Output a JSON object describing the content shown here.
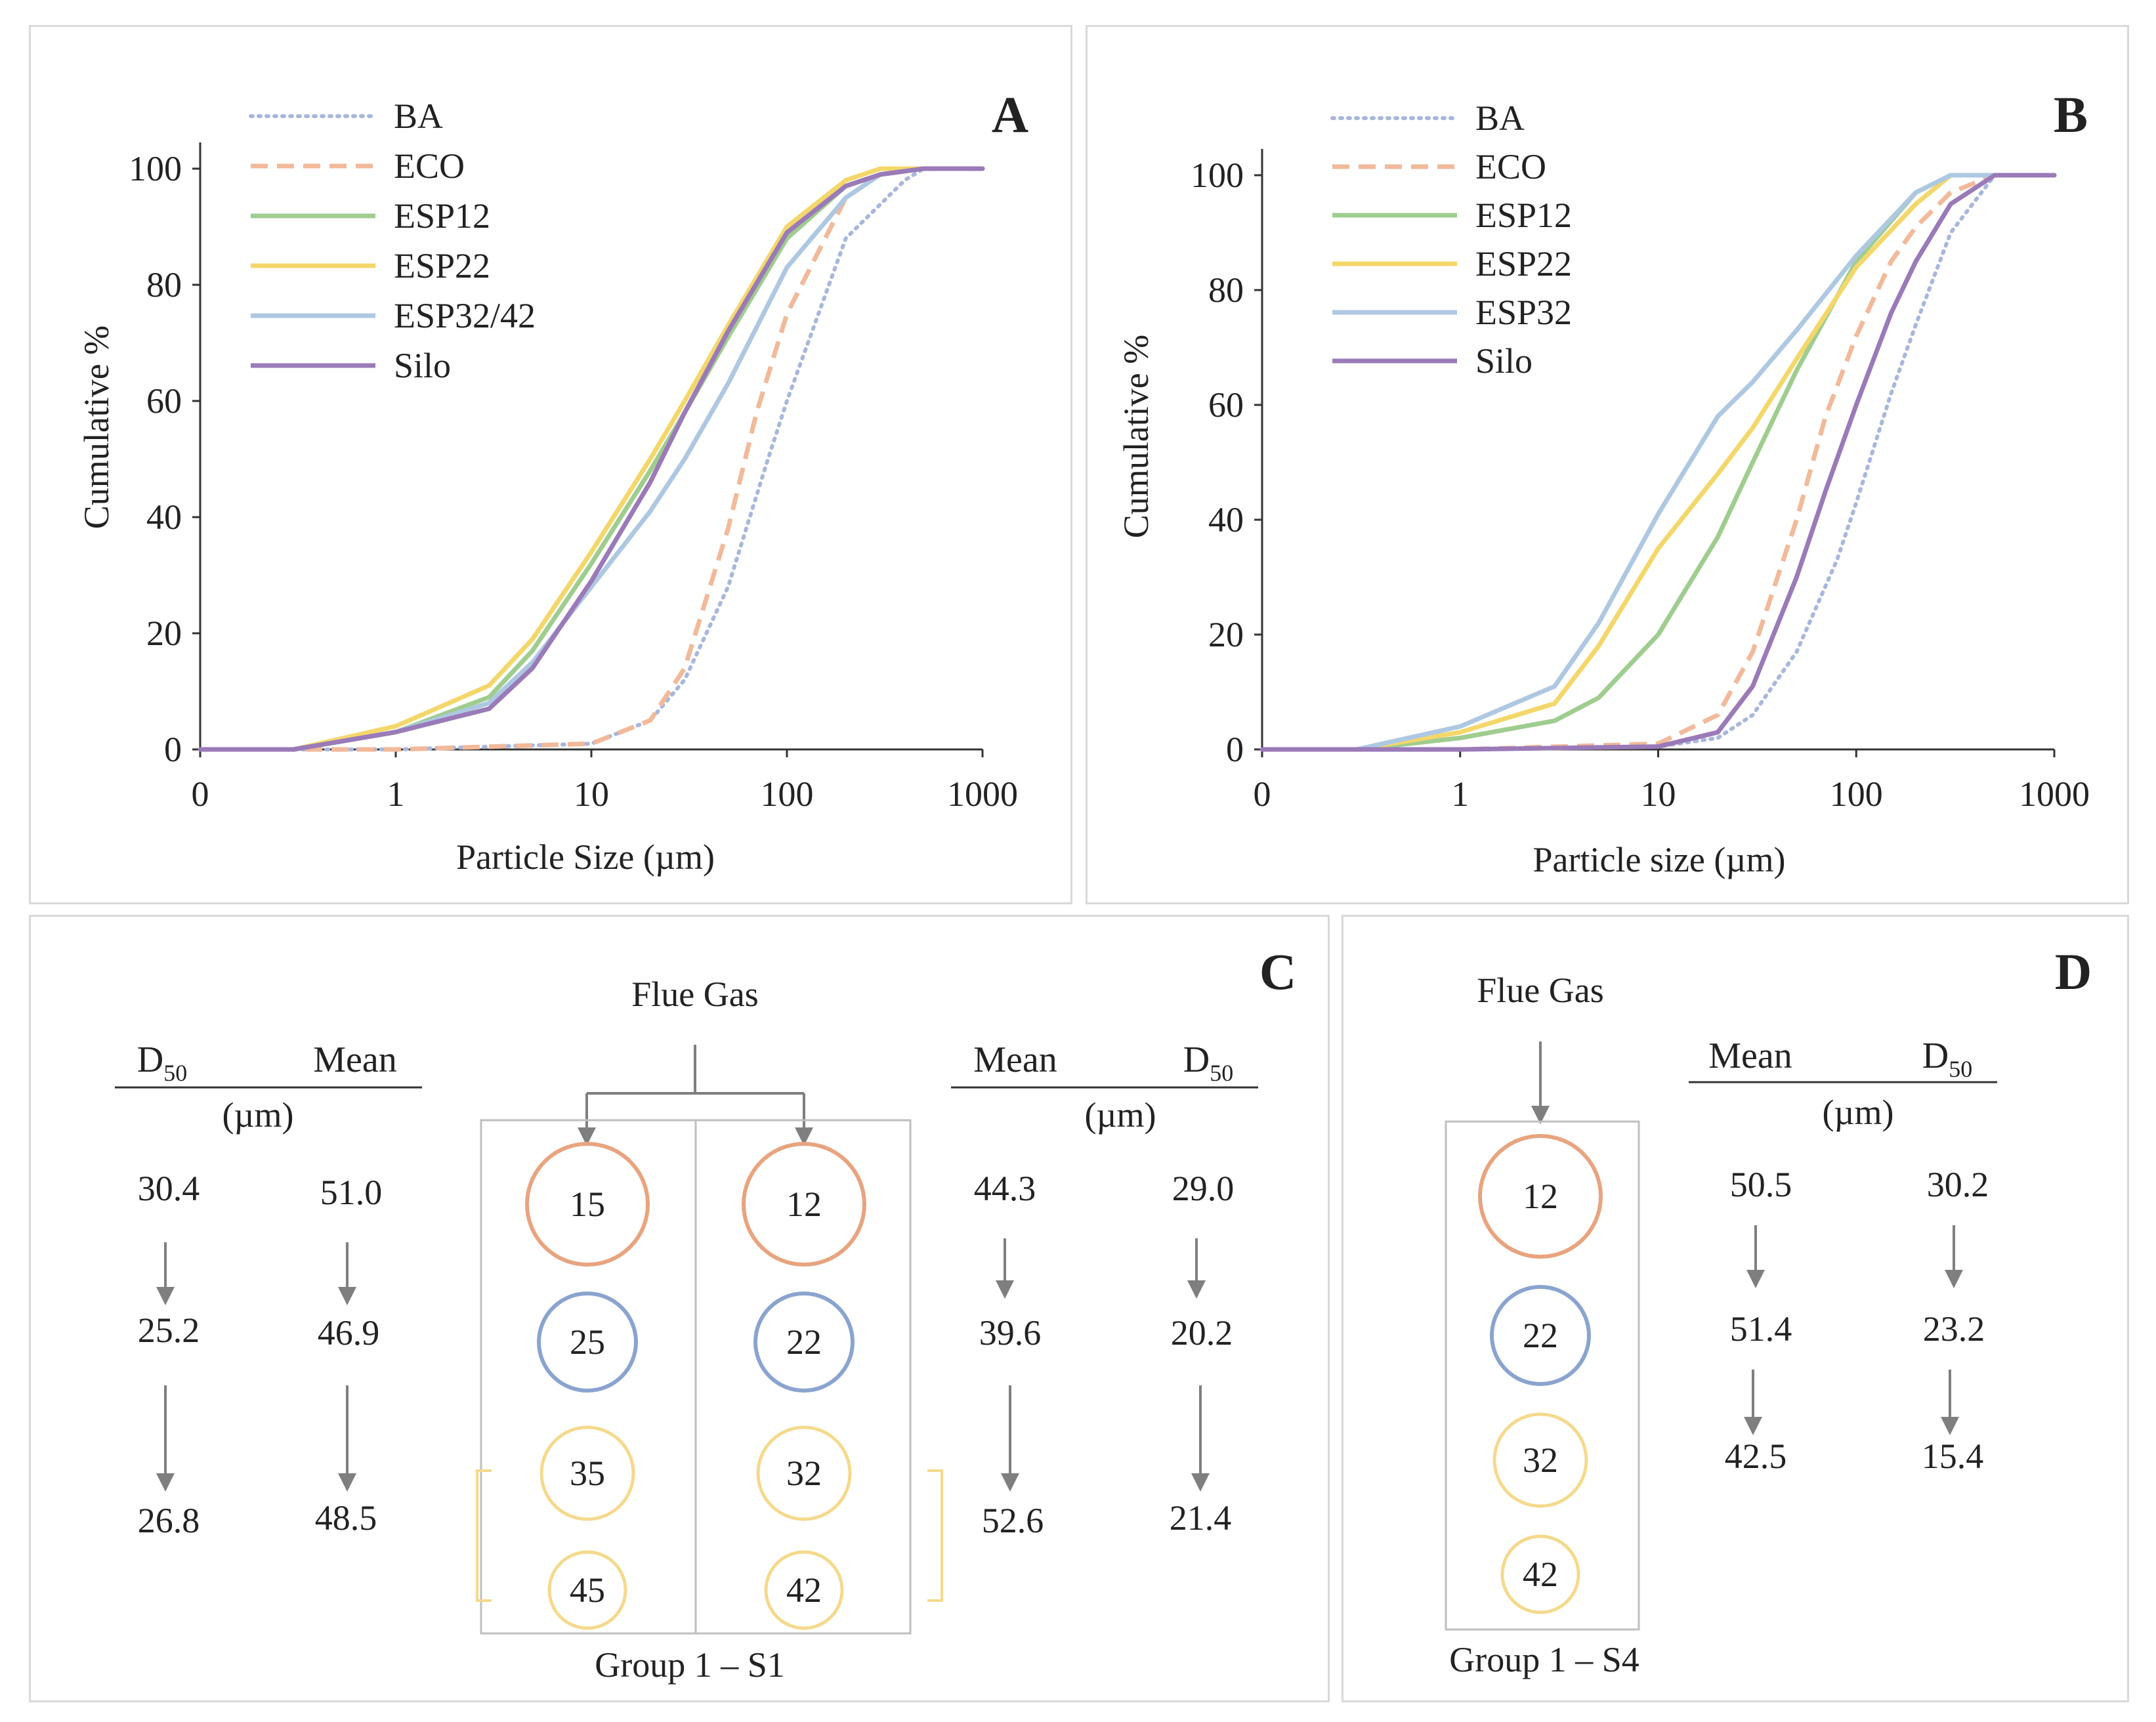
{
  "chart_data": [
    {
      "panel": "A",
      "type": "line",
      "letter": "A",
      "xlabel": "Particle Size (µm)",
      "ylabel": "Cumulative %",
      "xscale": "log",
      "xticks": [
        "0",
        "1",
        "10",
        "100",
        "1000"
      ],
      "yticks": [
        "0",
        "20",
        "40",
        "60",
        "80",
        "100"
      ],
      "ylim": [
        0,
        100
      ],
      "legend_position": "top-left",
      "series": [
        {
          "name": "BA",
          "style": "dotted",
          "color": "#a9b7dc",
          "d50": 79,
          "x": [
            0.1,
            1,
            10,
            20,
            30,
            50,
            80,
            100,
            200,
            400,
            500,
            1000
          ],
          "y": [
            0,
            0,
            1,
            5,
            12,
            28,
            50,
            60,
            88,
            98,
            100,
            100
          ]
        },
        {
          "name": "ECO",
          "style": "dashed",
          "color": "#f2b99a",
          "d50": 60,
          "x": [
            0.1,
            1,
            10,
            20,
            30,
            50,
            70,
            100,
            200,
            300,
            500,
            1000
          ],
          "y": [
            0,
            0,
            1,
            5,
            14,
            38,
            58,
            75,
            95,
            99,
            100,
            100
          ]
        },
        {
          "name": "ESP12",
          "style": "solid",
          "color": "#9fcd8f",
          "d50": 25,
          "x": [
            0.1,
            0.3,
            1,
            3,
            5,
            10,
            20,
            30,
            50,
            100,
            200,
            300,
            500,
            1000
          ],
          "y": [
            0,
            0,
            3,
            9,
            17,
            32,
            48,
            58,
            71,
            88,
            97,
            99,
            100,
            100
          ]
        },
        {
          "name": "ESP22",
          "style": "solid",
          "color": "#f4d76a",
          "d50": 23,
          "x": [
            0.1,
            0.3,
            1,
            3,
            5,
            10,
            20,
            30,
            50,
            100,
            200,
            300,
            500,
            1000
          ],
          "y": [
            0,
            0,
            4,
            11,
            19,
            34,
            50,
            60,
            73,
            90,
            98,
            100,
            100,
            100
          ]
        },
        {
          "name": "ESP32/42",
          "style": "solid",
          "color": "#aec8e2",
          "d50": 30,
          "x": [
            0.1,
            0.3,
            1,
            3,
            5,
            10,
            20,
            30,
            50,
            100,
            200,
            300,
            500,
            1000
          ],
          "y": [
            0,
            0,
            3,
            8,
            15,
            28,
            41,
            50,
            63,
            83,
            95,
            99,
            100,
            100
          ]
        },
        {
          "name": "Silo",
          "style": "solid",
          "color": "#9a7ab8",
          "d50": 25,
          "x": [
            0.1,
            0.3,
            1,
            3,
            5,
            10,
            20,
            30,
            50,
            100,
            200,
            300,
            500,
            1000
          ],
          "y": [
            0,
            0,
            3,
            7,
            14,
            29,
            46,
            58,
            72,
            89,
            97,
            99,
            100,
            100
          ]
        }
      ]
    },
    {
      "panel": "B",
      "type": "line",
      "letter": "B",
      "xlabel": "Particle size (µm)",
      "ylabel": "Cumulative %",
      "xscale": "log",
      "xticks": [
        "0",
        "1",
        "10",
        "100",
        "1000"
      ],
      "yticks": [
        "0",
        "20",
        "40",
        "60",
        "80",
        "100"
      ],
      "ylim": [
        0,
        100
      ],
      "legend_position": "top-left",
      "series": [
        {
          "name": "BA",
          "style": "dotted",
          "color": "#a9b7dc",
          "x": [
            0.1,
            1,
            10,
            20,
            30,
            50,
            80,
            100,
            150,
            200,
            300,
            500,
            1000
          ],
          "y": [
            0,
            0,
            0.5,
            2,
            6,
            17,
            33,
            43,
            62,
            74,
            90,
            100,
            100
          ]
        },
        {
          "name": "ECO",
          "style": "dashed",
          "color": "#f2b99a",
          "x": [
            0.1,
            1,
            10,
            20,
            30,
            50,
            70,
            100,
            150,
            200,
            300,
            500,
            1000
          ],
          "y": [
            0,
            0,
            1,
            6,
            17,
            40,
            58,
            72,
            85,
            91,
            97,
            100,
            100
          ]
        },
        {
          "name": "ESP12",
          "style": "solid",
          "color": "#9fcd8f",
          "x": [
            0.1,
            0.3,
            1,
            3,
            5,
            10,
            20,
            30,
            50,
            100,
            200,
            300,
            500,
            1000
          ],
          "y": [
            0,
            0,
            2,
            5,
            9,
            20,
            37,
            50,
            66,
            85,
            97,
            100,
            100,
            100
          ]
        },
        {
          "name": "ESP22",
          "style": "solid",
          "color": "#f4d76a",
          "x": [
            0.1,
            0.3,
            1,
            3,
            5,
            10,
            20,
            30,
            50,
            100,
            200,
            300,
            500,
            1000
          ],
          "y": [
            0,
            0,
            3,
            8,
            18,
            35,
            48,
            56,
            68,
            84,
            95,
            100,
            100,
            100
          ]
        },
        {
          "name": "ESP32",
          "style": "solid",
          "color": "#aec8e2",
          "x": [
            0.1,
            0.3,
            1,
            3,
            5,
            10,
            20,
            30,
            50,
            100,
            200,
            300,
            500,
            1000
          ],
          "y": [
            0,
            0,
            4,
            11,
            22,
            41,
            58,
            64,
            73,
            86,
            97,
            100,
            100,
            100
          ]
        },
        {
          "name": "Silo",
          "style": "solid",
          "color": "#9a7ab8",
          "x": [
            0.1,
            1,
            10,
            20,
            30,
            50,
            70,
            100,
            150,
            200,
            300,
            500,
            1000
          ],
          "y": [
            0,
            0,
            0.5,
            3,
            11,
            30,
            45,
            60,
            76,
            85,
            95,
            100,
            100
          ]
        }
      ]
    }
  ],
  "panelC": {
    "letter": "C",
    "flue_gas": "Flue Gas",
    "group_label": "Group 1 – S1",
    "left_cols": {
      "col1": "D",
      "col1_sub": "50",
      "col2": "Mean",
      "unit": "(µm)"
    },
    "right_cols": {
      "col1": "Mean",
      "col2": "D",
      "col2_sub": "50",
      "unit": "(µm)"
    },
    "left_values": [
      {
        "d50": "30.4",
        "mean": "51.0"
      },
      {
        "d50": "25.2",
        "mean": "46.9"
      },
      {
        "d50": "26.8",
        "mean": "48.5"
      }
    ],
    "right_values": [
      {
        "mean": "44.3",
        "d50": "29.0"
      },
      {
        "mean": "39.6",
        "d50": "20.2"
      },
      {
        "mean": "52.6",
        "d50": "21.4"
      }
    ],
    "left_circles": [
      "15",
      "25",
      "35",
      "45"
    ],
    "right_circles": [
      "12",
      "22",
      "32",
      "42"
    ]
  },
  "panelD": {
    "letter": "D",
    "flue_gas": "Flue Gas",
    "group_label": "Group 1 – S4",
    "cols": {
      "col1": "Mean",
      "col2": "D",
      "col2_sub": "50",
      "unit": "(µm)"
    },
    "values": [
      {
        "mean": "50.5",
        "d50": "30.2"
      },
      {
        "mean": "51.4",
        "d50": "23.2"
      },
      {
        "mean": "42.5",
        "d50": "15.4"
      }
    ],
    "circles": [
      "12",
      "22",
      "32",
      "42"
    ]
  },
  "colors": {
    "orange_circle": "#e8a47f",
    "blue_circle": "#8aa4cf",
    "yellow_circle": "#f5d98c",
    "arrow": "#7f7f7f",
    "axis": "#333333",
    "box": "#bfbfbf"
  }
}
